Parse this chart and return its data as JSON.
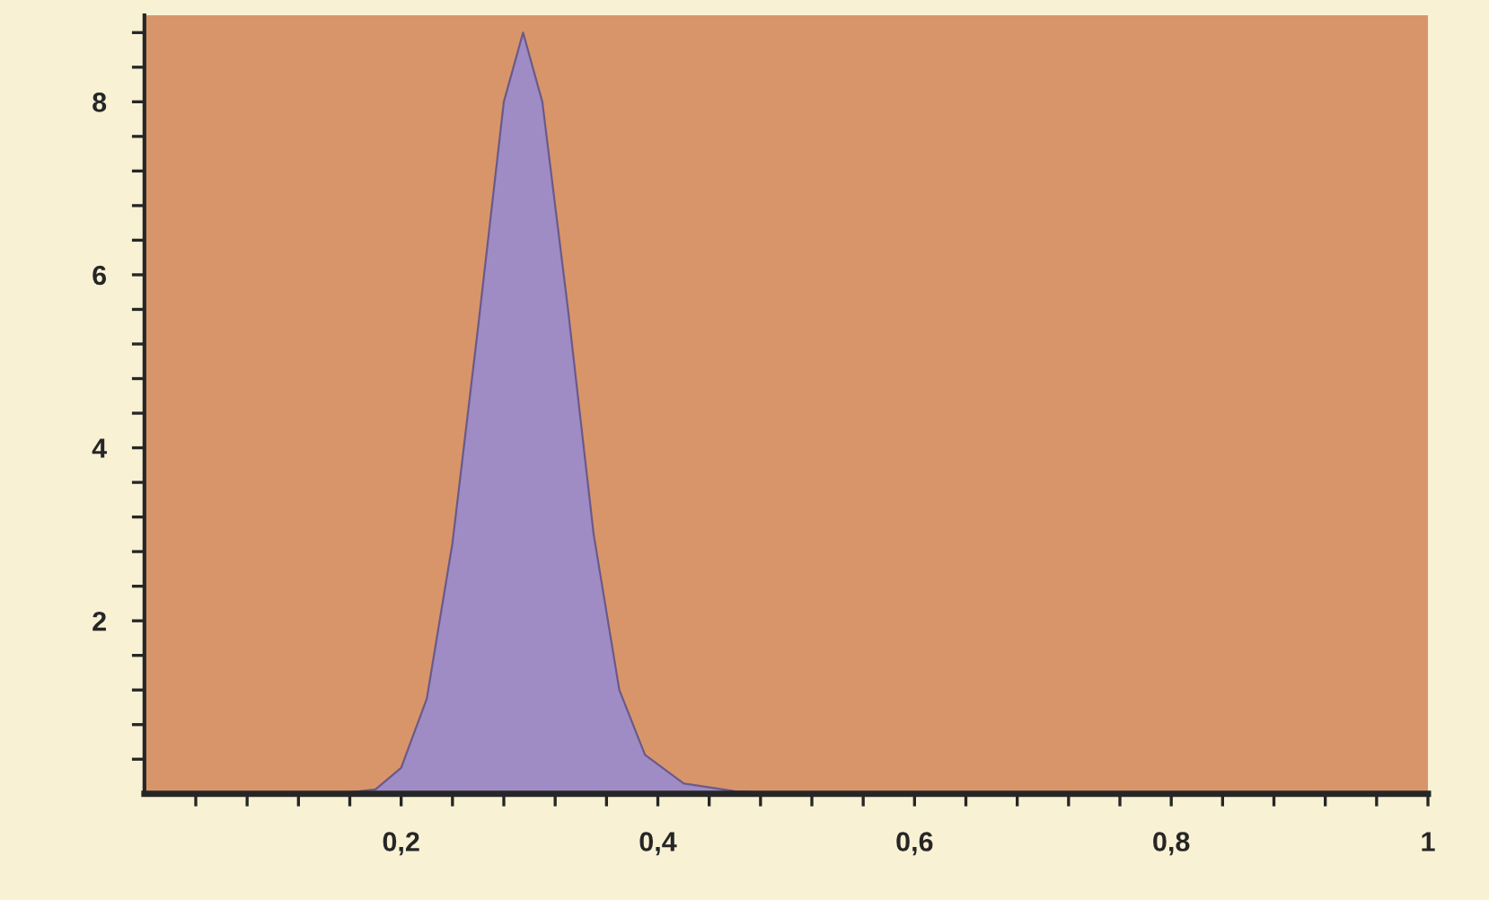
{
  "chart_data": {
    "type": "area",
    "x": [
      0,
      0.15,
      0.18,
      0.2,
      0.22,
      0.24,
      0.26,
      0.28,
      0.295,
      0.31,
      0.33,
      0.35,
      0.37,
      0.39,
      0.42,
      0.46,
      0.5,
      1
    ],
    "series": [
      {
        "color": "#a08cc4",
        "values": [
          0,
          0,
          0.05,
          0.3,
          1.1,
          2.9,
          5.4,
          8.0,
          8.8,
          8.0,
          5.6,
          3.0,
          1.2,
          0.45,
          0.12,
          0.03,
          0,
          0
        ]
      }
    ],
    "xlim": [
      0,
      1
    ],
    "xticks": [
      {
        "value": 0.04,
        "label": null
      },
      {
        "value": 0.08,
        "label": null
      },
      {
        "value": 0.12,
        "label": null
      },
      {
        "value": 0.16,
        "label": null
      },
      {
        "value": 0.2,
        "label": "0,2"
      },
      {
        "value": 0.24,
        "label": null
      },
      {
        "value": 0.28,
        "label": null
      },
      {
        "value": 0.32,
        "label": null
      },
      {
        "value": 0.36,
        "label": null
      },
      {
        "value": 0.4,
        "label": "0,4"
      },
      {
        "value": 0.44,
        "label": null
      },
      {
        "value": 0.48,
        "label": null
      },
      {
        "value": 0.52,
        "label": null
      },
      {
        "value": 0.56,
        "label": null
      },
      {
        "value": 0.6,
        "label": "0,6"
      },
      {
        "value": 0.64,
        "label": null
      },
      {
        "value": 0.68,
        "label": null
      },
      {
        "value": 0.72,
        "label": null
      },
      {
        "value": 0.76,
        "label": null
      },
      {
        "value": 0.8,
        "label": "0,8"
      },
      {
        "value": 0.84,
        "label": null
      },
      {
        "value": 0.88,
        "label": null
      },
      {
        "value": 0.92,
        "label": null
      },
      {
        "value": 0.96,
        "label": null
      },
      1
    ],
    "ylim": [
      0,
      9
    ],
    "yticks": [
      {
        "value": 0.4,
        "label": null
      },
      {
        "value": 0.8,
        "label": null
      },
      {
        "value": 1.2,
        "label": null
      },
      {
        "value": 1.6,
        "label": null
      },
      2,
      {
        "value": 2.4,
        "label": null
      },
      {
        "value": 2.8,
        "label": null
      },
      {
        "value": 3.2,
        "label": null
      },
      {
        "value": 3.6,
        "label": null
      },
      4,
      {
        "value": 4.4,
        "label": null
      },
      {
        "value": 4.8,
        "label": null
      },
      {
        "value": 5.2,
        "label": null
      },
      {
        "value": 5.6,
        "label": null
      },
      6,
      {
        "value": 6.4,
        "label": null
      },
      {
        "value": 6.8,
        "label": null
      },
      {
        "value": 7.2,
        "label": null
      },
      {
        "value": 7.6,
        "label": null
      },
      8,
      {
        "value": 8.4,
        "label": null
      },
      {
        "value": 8.8,
        "label": null
      }
    ],
    "grid": false,
    "legend": false
  }
}
